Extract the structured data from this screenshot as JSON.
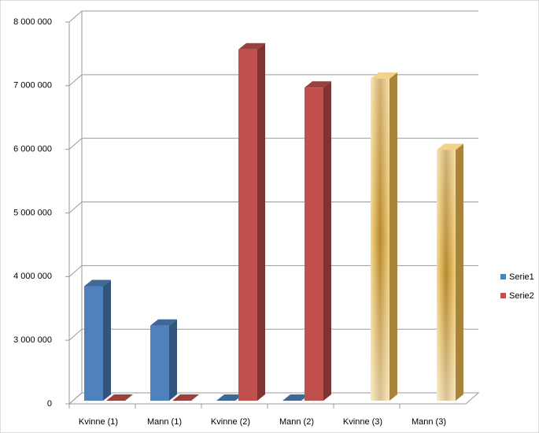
{
  "chart_data": {
    "type": "bar3d",
    "categories": [
      "Kvinne (1)",
      "Mann (1)",
      "Kvinne (2)",
      "Mann (2)",
      "Kvinne (3)",
      "Mann (3)"
    ],
    "series": [
      {
        "name": "Serie1",
        "color": "#4f81bd",
        "values": [
          3850000,
          3230000,
          0,
          0,
          null,
          null
        ]
      },
      {
        "name": "Serie2",
        "color": "#c0504d",
        "values": [
          0,
          0,
          7570000,
          6970000,
          7110000,
          5990000
        ],
        "colors": [
          "#c0504d",
          "#c0504d",
          "#c0504d",
          "#c0504d",
          "#d4a53c",
          "#d4a53c"
        ]
      }
    ],
    "ylim": [
      0,
      8000000
    ],
    "yticks": [
      {
        "value": 0,
        "label": "0"
      },
      {
        "value": 3000000,
        "label": "3 000 000"
      },
      {
        "value": 4000000,
        "label": "4 000 000"
      },
      {
        "value": 5000000,
        "label": "5 000 000"
      },
      {
        "value": 6000000,
        "label": "6 000 000"
      },
      {
        "value": 7000000,
        "label": "7 000 000"
      },
      {
        "value": 8000000,
        "label": "8 000 000"
      }
    ],
    "grid": true,
    "legend": "right"
  }
}
